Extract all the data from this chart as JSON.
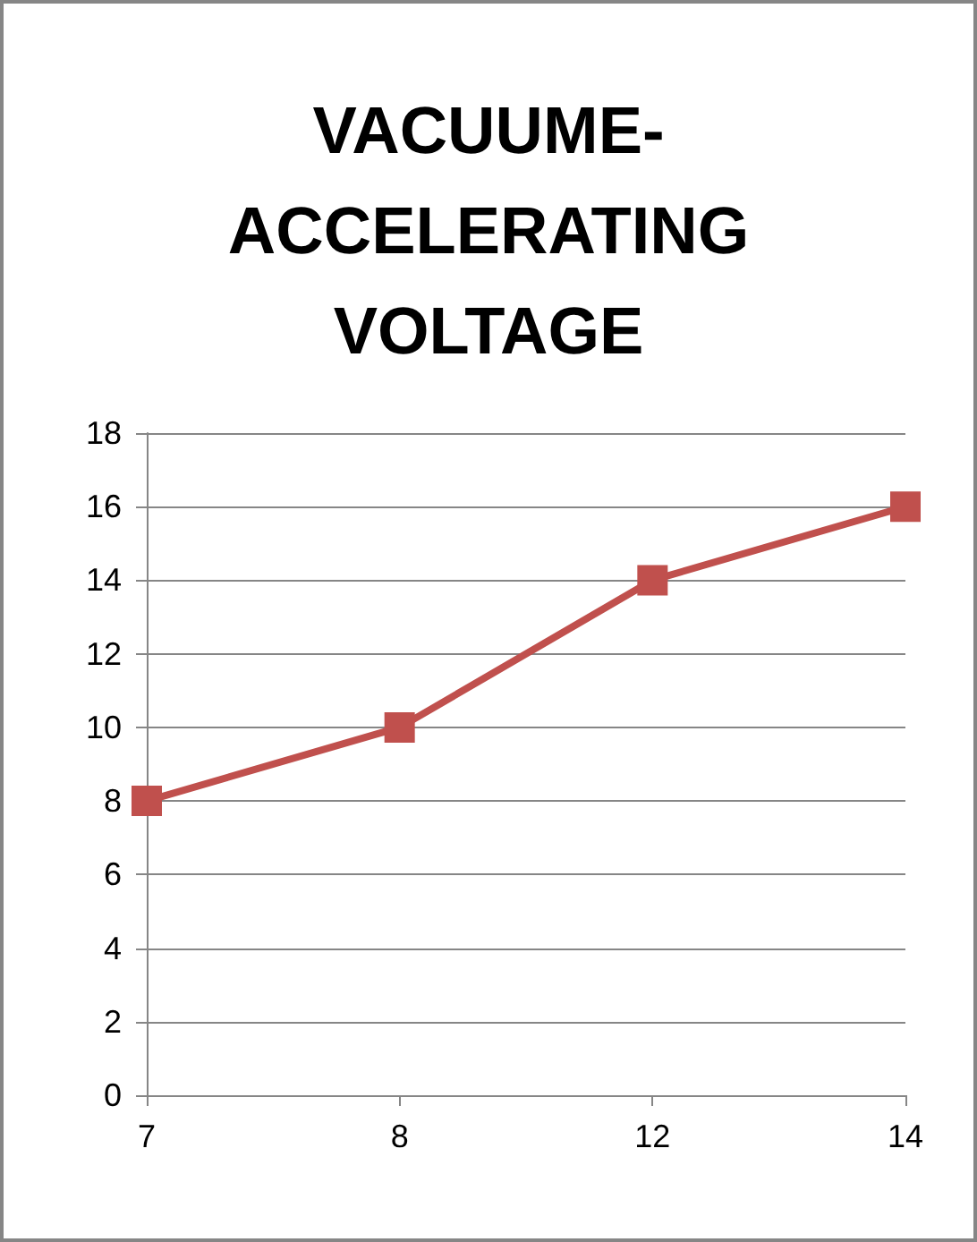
{
  "chart_data": {
    "type": "line",
    "title": "VACUUME-ACCELERATING VOLTAGE",
    "categories": [
      "7",
      "8",
      "12",
      "14"
    ],
    "series": [
      {
        "color": "#c0504d",
        "values": [
          8,
          10,
          14,
          16
        ]
      }
    ],
    "ylim": [
      0,
      18
    ],
    "yticks": [
      0,
      2,
      4,
      6,
      8,
      10,
      12,
      14,
      16,
      18
    ],
    "grid": "y",
    "marker": "square",
    "line_style": "solid"
  }
}
